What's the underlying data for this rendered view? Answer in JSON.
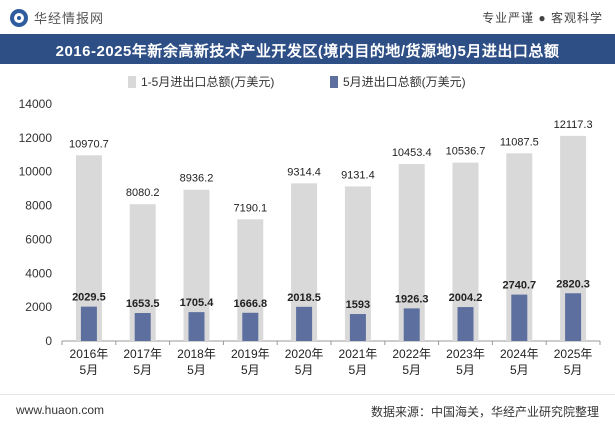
{
  "header": {
    "brand_name": "华经情报网",
    "slogan": "专业严谨 ● 客观科学",
    "logo_icon": "circle-logo-icon"
  },
  "chart_data": {
    "type": "bar",
    "title": "2016-2025年新余高新技术产业开发区(境内目的地/货源地)5月进出口总额",
    "categories": [
      "2016年\n5月",
      "2017年\n5月",
      "2018年\n5月",
      "2019年\n5月",
      "2020年\n5月",
      "2021年\n5月",
      "2022年\n5月",
      "2023年\n5月",
      "2024年\n5月",
      "2025年\n5月"
    ],
    "series": [
      {
        "name": "1-5月进出口总额(万美元)",
        "color": "#d9d9d9",
        "values": [
          10970.7,
          8080.2,
          8936.2,
          7190.1,
          9314.4,
          9131.4,
          10453.4,
          10536.7,
          11087.5,
          12117.3
        ]
      },
      {
        "name": "5月进出口总额(万美元)",
        "color": "#5c6f9e",
        "values": [
          2029.5,
          1653.5,
          1705.4,
          1666.8,
          2018.5,
          1593,
          1926.3,
          2004.2,
          2740.7,
          2820.3
        ]
      }
    ],
    "yticks": [
      0,
      2000,
      4000,
      6000,
      8000,
      10000,
      12000,
      14000
    ],
    "ylim": [
      0,
      14000
    ],
    "legend_position": "top-left",
    "grid": false
  },
  "footer": {
    "website": "www.huaon.com",
    "source": "数据来源：中国海关，华经产业研究院整理"
  }
}
